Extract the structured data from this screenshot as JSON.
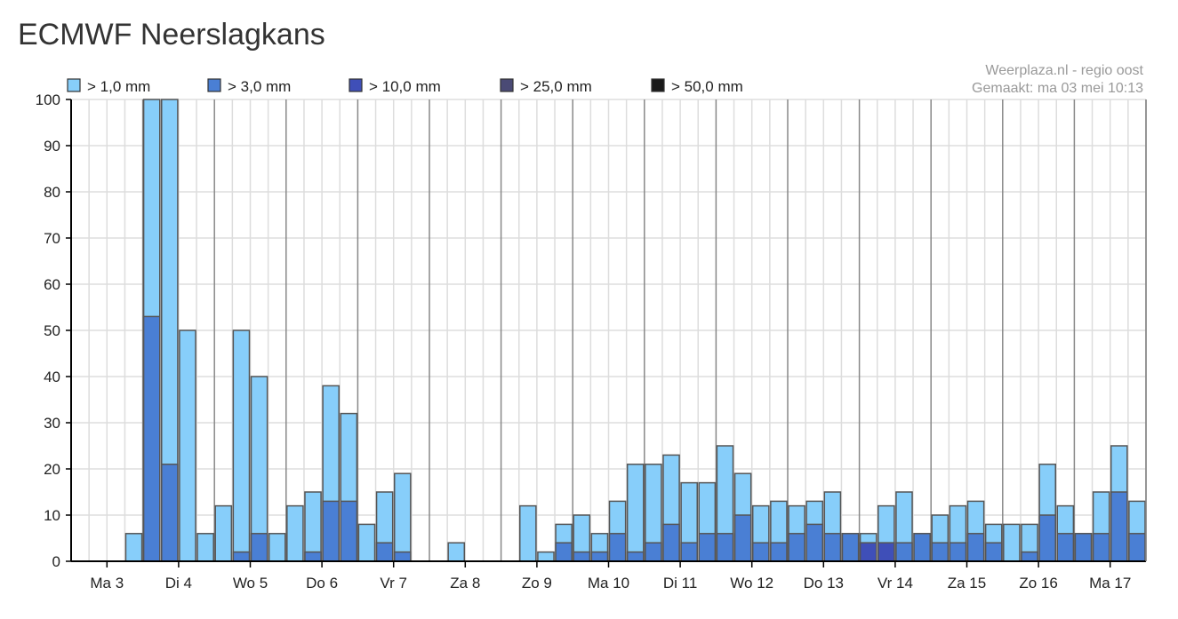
{
  "title": "ECMWF Neerslagkans",
  "credit": {
    "source": "Weerplaza.nl - regio oost",
    "made": "Gemaakt: ma 03 mei 10:13"
  },
  "colors": {
    "background": "#ffffff",
    "grid": "#dddddd",
    "day_separator": "#888888",
    "axis": "#000000",
    "bar_outline": "#555555"
  },
  "chart_data": {
    "type": "bar",
    "stacked": "overlay",
    "title": "",
    "xlabel": "",
    "ylabel": "",
    "ylim": [
      0,
      100
    ],
    "yticks": [
      0,
      10,
      20,
      30,
      40,
      50,
      60,
      70,
      80,
      90,
      100
    ],
    "grid": true,
    "legend_position": "top-left",
    "bars_per_day": 4,
    "day_labels": [
      "Ma 3",
      "Di 4",
      "Wo 5",
      "Do 6",
      "Vr 7",
      "Za 8",
      "Zo 9",
      "Ma 10",
      "Di 11",
      "Wo 12",
      "Do 13",
      "Vr 14",
      "Za 15",
      "Zo 16",
      "Ma 17"
    ],
    "series": [
      {
        "name": "> 1,0 mm",
        "color": "#87cefa",
        "values": [
          0,
          0,
          0,
          6,
          100,
          100,
          50,
          6,
          12,
          50,
          40,
          6,
          12,
          15,
          38,
          32,
          8,
          15,
          19,
          0,
          0,
          4,
          0,
          0,
          0,
          12,
          2,
          8,
          10,
          6,
          13,
          21,
          21,
          23,
          17,
          17,
          25,
          19,
          12,
          13,
          12,
          13,
          15,
          6,
          6,
          12,
          15,
          6,
          10,
          12,
          13,
          8,
          8,
          8,
          21,
          12,
          6,
          15,
          25,
          13
        ]
      },
      {
        "name": "> 3,0 mm",
        "color": "#4a7fd4",
        "values": [
          0,
          0,
          0,
          0,
          53,
          21,
          0,
          0,
          0,
          2,
          6,
          0,
          0,
          2,
          13,
          13,
          0,
          4,
          2,
          0,
          0,
          0,
          0,
          0,
          0,
          0,
          0,
          4,
          2,
          2,
          6,
          2,
          4,
          8,
          4,
          6,
          6,
          10,
          4,
          4,
          6,
          8,
          6,
          6,
          4,
          4,
          4,
          6,
          4,
          4,
          6,
          4,
          0,
          2,
          10,
          6,
          6,
          6,
          15,
          6
        ]
      },
      {
        "name": "> 10,0 mm",
        "color": "#3f4fb8",
        "values": [
          0,
          0,
          0,
          0,
          0,
          0,
          0,
          0,
          0,
          0,
          0,
          0,
          0,
          0,
          0,
          0,
          0,
          0,
          0,
          0,
          0,
          0,
          0,
          0,
          0,
          0,
          0,
          0,
          0,
          0,
          0,
          0,
          0,
          0,
          0,
          0,
          0,
          0,
          0,
          0,
          0,
          0,
          0,
          0,
          4,
          4,
          0,
          0,
          0,
          0,
          0,
          0,
          0,
          0,
          0,
          0,
          0,
          0,
          0,
          0
        ]
      },
      {
        "name": "> 25,0 mm",
        "color": "#4a4a75",
        "values": []
      },
      {
        "name": "> 50,0 mm",
        "color": "#1a1a1a",
        "values": []
      }
    ]
  }
}
